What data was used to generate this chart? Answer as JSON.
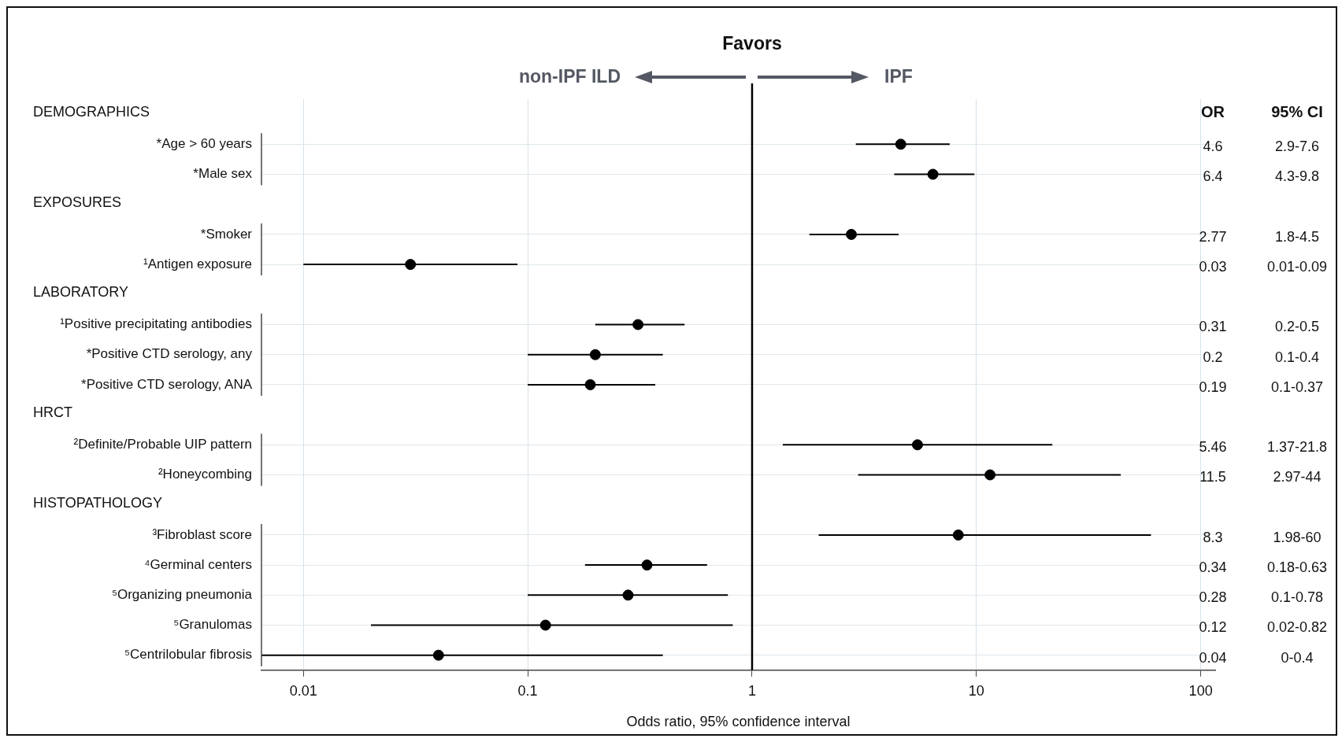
{
  "chart_data": {
    "type": "scatter",
    "title": "Favors",
    "xlabel": "Odds ratio, 95% confidence interval",
    "annotations": [
      "non-IPF ILD",
      "IPF",
      "OR",
      "95% CI",
      "4.6",
      "2.9-7.6",
      "6.4",
      "4.3-9.8",
      "2.77",
      "1.8-4.5",
      "0.03",
      "0.01-0.09",
      "0.31",
      "0.2-0.5",
      "0.2",
      "0.1-0.4",
      "0.19",
      "0.1-0.37",
      "5.46",
      "1.37-21.8",
      "11.5",
      "2.97-44",
      "8.3",
      "1.98-60",
      "0.34",
      "0.18-0.63",
      "0.28",
      "0.1-0.78",
      "0.12",
      "0.02-0.82",
      "0.04",
      "0-0.4",
      "DEMOGRAPHICS",
      "EXPOSURES",
      "LABORATORY",
      "HRCT",
      "HISTOPATHOLOGY"
    ],
    "categories": [
      null,
      "*Age > 60 years",
      "*Male sex",
      null,
      "*Smoker",
      "¹Antigen exposure",
      null,
      "¹Positive precipitating antibodies",
      "*Positive CTD serology, any",
      "*Positive CTD serology, ANA",
      null,
      "²Definite/Probable UIP pattern",
      "²Honeycombing",
      null,
      "³Fibroblast score",
      "⁴Germinal centers",
      "⁵Organizing pneumonia",
      "⁵Granulomas",
      "⁵Centrilobular fibrosis"
    ],
    "values": [
      null,
      4.6,
      6.4,
      null,
      2.77,
      0.03,
      null,
      0.31,
      0.2,
      0.19,
      null,
      5.46,
      11.5,
      null,
      8.3,
      0.34,
      0.28,
      0.12,
      0.04
    ],
    "errors": [
      null,
      [
        2.9,
        7.6
      ],
      [
        4.3,
        9.8
      ],
      null,
      [
        1.8,
        4.5
      ],
      [
        0.01,
        0.09
      ],
      null,
      [
        0.2,
        0.5
      ],
      [
        0.1,
        0.4
      ],
      [
        0.1,
        0.37
      ],
      null,
      [
        1.37,
        21.8
      ],
      [
        2.97,
        44
      ],
      null,
      [
        1.98,
        60
      ],
      [
        0.18,
        0.63
      ],
      [
        0.1,
        0.78
      ],
      [
        0.02,
        0.82
      ],
      [
        0.0065,
        0.4
      ]
    ],
    "orientation": "horizontal",
    "color": "#000000",
    "marker": "circle",
    "log": "x",
    "grid": true,
    "xlim": [
      0.0065,
      116
    ],
    "xticks": [
      0.01,
      0.1,
      1,
      10,
      100
    ],
    "ref_lines": [
      {
        "axis": "x",
        "value": 1,
        "color": "#000000"
      }
    ]
  }
}
